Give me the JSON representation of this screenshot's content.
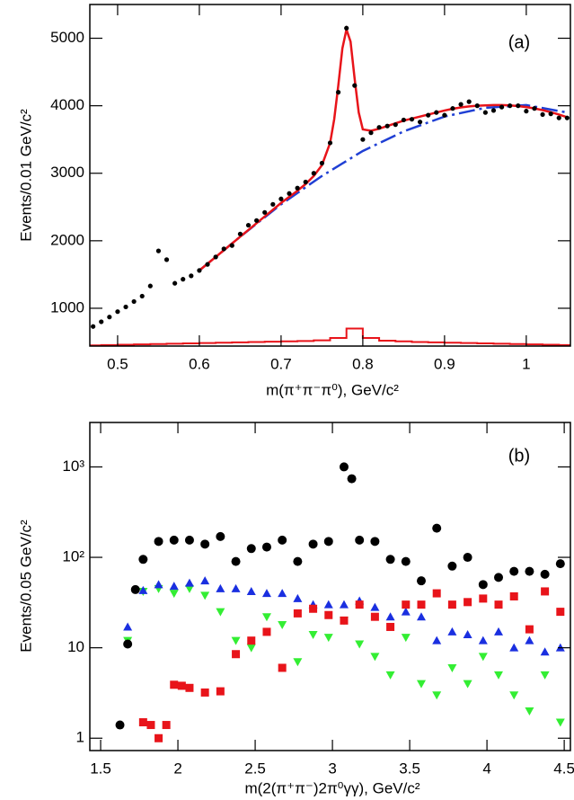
{
  "chart_data": [
    {
      "type": "scatter",
      "annotation": "(a)",
      "x_label": "m(π⁺π⁻π⁰), GeV/c²",
      "y_label": "Events/0.01 GeV/c²",
      "xlim": [
        0.466,
        1.054
      ],
      "ylim": [
        440,
        5500
      ],
      "xticks": [
        0.5,
        0.6,
        0.7,
        0.8,
        0.9,
        1
      ],
      "yticks": [
        1000,
        2000,
        3000,
        4000,
        5000
      ],
      "log_y": false,
      "series": [
        {
          "mark": "step",
          "color": "#e8141a",
          "x": [
            0.47,
            0.49,
            0.51,
            0.53,
            0.55,
            0.57,
            0.59,
            0.61,
            0.63,
            0.65,
            0.67,
            0.69,
            0.71,
            0.73,
            0.75,
            0.77,
            0.79,
            0.81,
            0.83,
            0.85,
            0.87,
            0.89,
            0.91,
            0.93,
            0.95,
            0.97,
            0.99,
            1.01,
            1.03,
            1.05
          ],
          "values": [
            450,
            455,
            460,
            465,
            470,
            475,
            480,
            485,
            490,
            495,
            500,
            505,
            510,
            515,
            525,
            560,
            700,
            560,
            520,
            510,
            500,
            495,
            490,
            485,
            480,
            475,
            470,
            465,
            460,
            455
          ]
        },
        {
          "mark": "dashdot",
          "color": "#1f3fd4",
          "x": [
            0.6,
            0.65,
            0.7,
            0.75,
            0.8,
            0.85,
            0.9,
            0.95,
            1.0,
            1.05
          ],
          "values": [
            1560,
            2060,
            2540,
            2960,
            3330,
            3620,
            3840,
            3970,
            4010,
            3900
          ]
        },
        {
          "mark": "line",
          "color": "#e8141a",
          "x": [
            0.6,
            0.61,
            0.62,
            0.63,
            0.64,
            0.65,
            0.66,
            0.67,
            0.68,
            0.69,
            0.7,
            0.71,
            0.72,
            0.73,
            0.74,
            0.75,
            0.76,
            0.765,
            0.77,
            0.775,
            0.78,
            0.785,
            0.79,
            0.795,
            0.8,
            0.81,
            0.82,
            0.83,
            0.84,
            0.85,
            0.86,
            0.87,
            0.88,
            0.89,
            0.9,
            0.91,
            0.92,
            0.93,
            0.94,
            0.95,
            0.96,
            0.97,
            0.98,
            0.99,
            1.0,
            1.01,
            1.02,
            1.03,
            1.04,
            1.05
          ],
          "values": [
            1560,
            1660,
            1760,
            1860,
            1960,
            2060,
            2160,
            2260,
            2360,
            2460,
            2560,
            2650,
            2740,
            2840,
            2960,
            3120,
            3450,
            3800,
            4300,
            4850,
            5130,
            4950,
            4400,
            3900,
            3650,
            3630,
            3660,
            3700,
            3740,
            3780,
            3810,
            3840,
            3870,
            3900,
            3930,
            3955,
            3975,
            3990,
            4000,
            4005,
            4010,
            4010,
            4005,
            3995,
            3980,
            3960,
            3935,
            3905,
            3870,
            3830
          ]
        },
        {
          "mark": "circle",
          "color": "#000000",
          "x": [
            0.47,
            0.48,
            0.49,
            0.5,
            0.51,
            0.52,
            0.53,
            0.54,
            0.55,
            0.56,
            0.57,
            0.58,
            0.59,
            0.6,
            0.61,
            0.62,
            0.63,
            0.64,
            0.65,
            0.66,
            0.67,
            0.68,
            0.69,
            0.7,
            0.71,
            0.72,
            0.73,
            0.74,
            0.75,
            0.76,
            0.77,
            0.78,
            0.79,
            0.8,
            0.81,
            0.82,
            0.83,
            0.84,
            0.85,
            0.86,
            0.87,
            0.88,
            0.89,
            0.9,
            0.91,
            0.92,
            0.93,
            0.94,
            0.95,
            0.96,
            0.97,
            0.98,
            0.99,
            1.0,
            1.01,
            1.02,
            1.03,
            1.04,
            1.05
          ],
          "values": [
            730,
            800,
            870,
            950,
            1020,
            1100,
            1180,
            1330,
            1850,
            1720,
            1370,
            1430,
            1480,
            1560,
            1650,
            1760,
            1880,
            1930,
            2100,
            2230,
            2300,
            2420,
            2540,
            2620,
            2700,
            2780,
            2870,
            3000,
            3150,
            3450,
            4200,
            5150,
            4300,
            3500,
            3600,
            3680,
            3700,
            3720,
            3790,
            3800,
            3760,
            3860,
            3900,
            3860,
            3960,
            4020,
            4060,
            4000,
            3900,
            3930,
            3980,
            4000,
            4000,
            3920,
            3960,
            3870,
            3880,
            3820,
            3820
          ]
        }
      ]
    },
    {
      "type": "scatter",
      "annotation": "(b)",
      "x_label": "m(2(π⁺π⁻)2π⁰γγ), GeV/c²",
      "y_label": "Events/0.05 GeV/c²",
      "xlim": [
        1.43,
        4.54
      ],
      "ylim": [
        0.73,
        3100
      ],
      "xticks": [
        1.5,
        2,
        2.5,
        3,
        3.5,
        4,
        4.5
      ],
      "yticks": [
        1,
        10,
        {
          "value": 100,
          "label": "10²"
        },
        {
          "value": 1000,
          "label": "10³"
        }
      ],
      "log_y": true,
      "series": [
        {
          "mark": "triangle-down",
          "color": "#33ee33",
          "x": [
            1.675,
            1.775,
            1.875,
            1.975,
            2.075,
            2.175,
            2.275,
            2.375,
            2.475,
            2.575,
            2.675,
            2.775,
            2.875,
            2.975,
            3.075,
            3.175,
            3.275,
            3.375,
            3.475,
            3.575,
            3.675,
            3.775,
            3.875,
            3.975,
            4.075,
            4.175,
            4.275,
            4.375,
            4.475
          ],
          "values": [
            12,
            42,
            45,
            40,
            45,
            38,
            25,
            12,
            10,
            22,
            18,
            7,
            14,
            13,
            20,
            11,
            8,
            5,
            13,
            4,
            3,
            6,
            4,
            8,
            5,
            3,
            2,
            5,
            1.5
          ]
        },
        {
          "mark": "triangle-up",
          "color": "#1a2fe0",
          "x": [
            1.675,
            1.775,
            1.875,
            1.975,
            2.075,
            2.175,
            2.275,
            2.375,
            2.475,
            2.575,
            2.675,
            2.775,
            2.875,
            2.975,
            3.075,
            3.175,
            3.275,
            3.375,
            3.475,
            3.575,
            3.675,
            3.775,
            3.875,
            3.975,
            4.075,
            4.175,
            4.275,
            4.375,
            4.475
          ],
          "values": [
            17,
            43,
            50,
            48,
            52,
            55,
            45,
            45,
            42,
            40,
            40,
            35,
            30,
            30,
            30,
            33,
            28,
            22,
            25,
            22,
            12,
            15,
            14,
            12,
            15,
            10,
            12,
            9,
            10
          ]
        },
        {
          "mark": "square",
          "color": "#e8141a",
          "x": [
            1.775,
            1.825,
            1.875,
            1.925,
            1.975,
            2.025,
            2.075,
            2.175,
            2.275,
            2.375,
            2.475,
            2.575,
            2.675,
            2.775,
            2.875,
            2.975,
            3.075,
            3.175,
            3.275,
            3.375,
            3.475,
            3.575,
            3.675,
            3.775,
            3.875,
            3.975,
            4.075,
            4.175,
            4.275,
            4.375,
            4.475
          ],
          "values": [
            1.5,
            1.4,
            1.0,
            1.4,
            3.9,
            3.8,
            3.6,
            3.2,
            3.3,
            8.5,
            12,
            15,
            6,
            24,
            27,
            23,
            20,
            30,
            22,
            17,
            30,
            30,
            40,
            30,
            32,
            35,
            30,
            37,
            16,
            42,
            25
          ]
        },
        {
          "mark": "circle",
          "color": "#000000",
          "x": [
            1.625,
            1.675,
            1.725,
            1.775,
            1.875,
            1.975,
            2.075,
            2.175,
            2.275,
            2.375,
            2.475,
            2.575,
            2.675,
            2.775,
            2.875,
            2.975,
            3.075,
            3.125,
            3.175,
            3.275,
            3.375,
            3.475,
            3.575,
            3.675,
            3.775,
            3.875,
            3.975,
            4.075,
            4.175,
            4.275,
            4.375,
            4.475
          ],
          "values": [
            1.4,
            11,
            44,
            95,
            150,
            155,
            155,
            140,
            170,
            90,
            125,
            130,
            155,
            90,
            140,
            150,
            1000,
            740,
            155,
            150,
            95,
            90,
            55,
            210,
            80,
            100,
            50,
            60,
            70,
            70,
            65,
            85
          ]
        }
      ]
    }
  ]
}
